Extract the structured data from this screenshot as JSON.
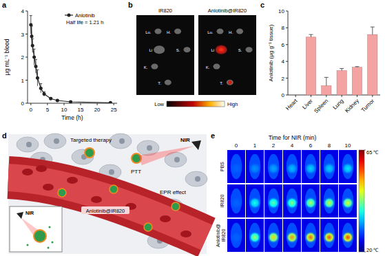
{
  "panel_labels": [
    "a",
    "b",
    "c",
    "d",
    "e"
  ],
  "chart_data": [
    {
      "type": "line",
      "x_label": "Time (h)",
      "y_label": "μg mL⁻¹ blood",
      "x": [
        0,
        0.25,
        0.5,
        1,
        1.5,
        2,
        3,
        4,
        6,
        8,
        12,
        24
      ],
      "series": [
        {
          "name": "Anlotinib",
          "color": "#222222",
          "marker": "circle",
          "values": [
            3.4,
            2.9,
            2.5,
            2.0,
            1.6,
            1.1,
            0.65,
            0.4,
            0.2,
            0.12,
            0.06,
            0.02
          ],
          "errors": [
            0.4,
            0.45,
            0.3,
            0.35,
            0.3,
            0.35,
            0.2,
            0.1,
            0.05,
            0.04,
            0.03,
            0.02
          ]
        }
      ],
      "annotations": [
        "Half life = 1.21 h"
      ],
      "xlim": [
        -1,
        26
      ],
      "xticks": [
        0,
        5,
        10,
        15,
        20,
        25
      ],
      "ylim": [
        0,
        4
      ],
      "yticks": [
        0,
        1,
        2,
        3,
        4
      ],
      "legend": "upper right"
    },
    {
      "type": "bar",
      "y_label": "Anlotinib (μg g⁻¹ tissue)",
      "categories": [
        "Heart",
        "Liver",
        "Spleen",
        "Lung",
        "Kidney",
        "Tumor"
      ],
      "values": [
        0,
        6.9,
        1.1,
        2.9,
        3.3,
        7.2
      ],
      "errors": [
        0,
        0.3,
        1.0,
        0.25,
        0.08,
        0.9
      ],
      "color": "#f4a3a3",
      "ylim": [
        0,
        10
      ],
      "yticks": [
        0,
        2,
        4,
        6,
        8,
        10
      ]
    }
  ],
  "images": {
    "titles": [
      "IR820",
      "Anlotinib@IR820"
    ],
    "organs": [
      "Lu.",
      "H.",
      "Li",
      "K.",
      "S.",
      "T."
    ],
    "colorbar": [
      "Low",
      "High"
    ]
  },
  "diagram": {
    "targeted": "Targeted therapy",
    "nir": "NIR",
    "ptt": "PTT",
    "epr": "EPR effect",
    "particle": "Anlotinib@IR820",
    "inset_nir": "NIR"
  },
  "thermal": {
    "title": "Time for NIR (min)",
    "times": [
      0,
      1,
      2,
      4,
      6,
      8,
      10
    ],
    "rows": [
      {
        "name": "PBS",
        "peak": [
          30,
          32,
          33,
          34,
          35,
          35,
          36
        ]
      },
      {
        "name": "IR820",
        "peak": [
          30,
          38,
          41,
          43,
          45,
          46,
          47
        ]
      },
      {
        "name": "Anlotinib@IR820",
        "peak": [
          30,
          44,
          50,
          53,
          55,
          56,
          57
        ]
      }
    ],
    "colorbar": {
      "range": [
        20,
        65
      ],
      "ticks": [
        {
          "value": 65,
          "label": "65 ℃"
        },
        {
          "value": 20,
          "label": "20 ℃"
        }
      ]
    }
  }
}
